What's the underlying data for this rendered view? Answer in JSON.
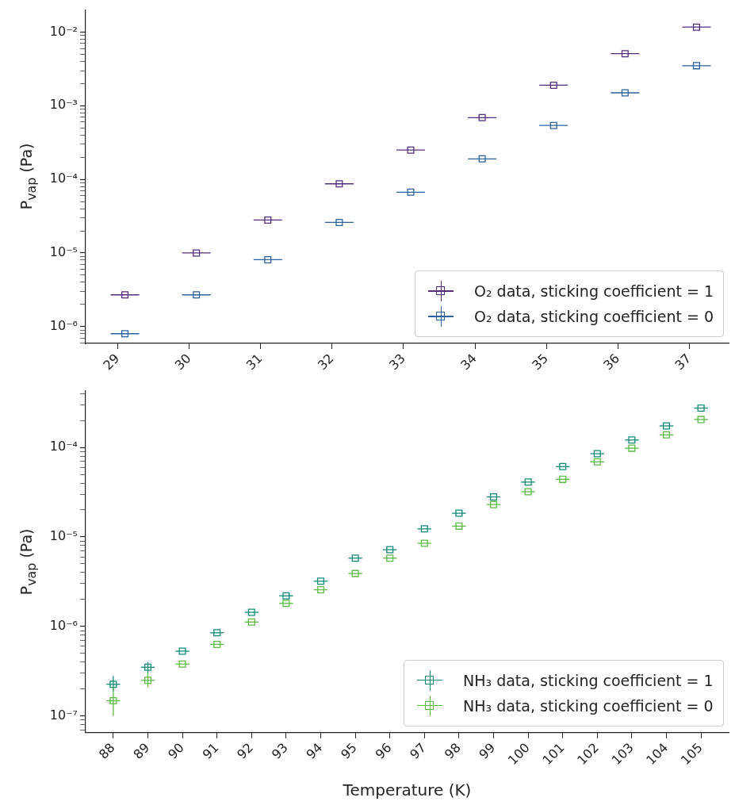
{
  "chart_data": [
    {
      "type": "scatter",
      "ylabel": "P$_{vap}$ (Pa)",
      "log": "y",
      "grid": false,
      "legend": "bottom right",
      "marker": "square",
      "x": [
        29.1,
        30.1,
        31.1,
        32.1,
        33.1,
        34.1,
        35.1,
        36.1,
        37.1
      ],
      "xlim": [
        28.55,
        37.55
      ],
      "xticks": [
        29,
        30,
        31,
        32,
        33,
        34,
        35,
        36,
        37
      ],
      "ylim": [
        5.9e-07,
        0.02
      ],
      "yticks": [
        {
          "value": 6e-07,
          "label": null
        },
        {
          "value": 7e-07,
          "label": null
        },
        {
          "value": 8e-07,
          "label": null
        },
        {
          "value": 9e-07,
          "label": null
        },
        {
          "value": 1e-06,
          "label": "10⁻⁶"
        },
        {
          "value": 2e-06,
          "label": null
        },
        {
          "value": 3e-06,
          "label": null
        },
        {
          "value": 4e-06,
          "label": null
        },
        {
          "value": 5e-06,
          "label": null
        },
        {
          "value": 6e-06,
          "label": null
        },
        {
          "value": 7e-06,
          "label": null
        },
        {
          "value": 8e-06,
          "label": null
        },
        {
          "value": 9e-06,
          "label": null
        },
        {
          "value": 1e-05,
          "label": "10⁻⁵"
        },
        {
          "value": 2e-05,
          "label": null
        },
        {
          "value": 3e-05,
          "label": null
        },
        {
          "value": 4e-05,
          "label": null
        },
        {
          "value": 5e-05,
          "label": null
        },
        {
          "value": 6e-05,
          "label": null
        },
        {
          "value": 7e-05,
          "label": null
        },
        {
          "value": 8e-05,
          "label": null
        },
        {
          "value": 9e-05,
          "label": null
        },
        {
          "value": 0.0001,
          "label": "10⁻⁴"
        },
        {
          "value": 0.0002,
          "label": null
        },
        {
          "value": 0.0003,
          "label": null
        },
        {
          "value": 0.0004,
          "label": null
        },
        {
          "value": 0.0005,
          "label": null
        },
        {
          "value": 0.0006,
          "label": null
        },
        {
          "value": 0.0007,
          "label": null
        },
        {
          "value": 0.0008,
          "label": null
        },
        {
          "value": 0.0009,
          "label": null
        },
        {
          "value": 0.001,
          "label": "10⁻³"
        },
        {
          "value": 0.002,
          "label": null
        },
        {
          "value": 0.003,
          "label": null
        },
        {
          "value": 0.004,
          "label": null
        },
        {
          "value": 0.005,
          "label": null
        },
        {
          "value": 0.006,
          "label": null
        },
        {
          "value": 0.007,
          "label": null
        },
        {
          "value": 0.008,
          "label": null
        },
        {
          "value": 0.009,
          "label": null
        },
        {
          "value": 0.01,
          "label": "10⁻²"
        }
      ],
      "series": [
        {
          "name": "O₂ data, sticking coefficient = 1",
          "color": "#562d7e",
          "values": [
            2.7e-06,
            1e-05,
            2.8e-05,
            8.7e-05,
            0.00025,
            0.00069,
            0.0019,
            0.0051,
            0.0117
          ],
          "xerrors": [
            0.2,
            0.2,
            0.2,
            0.2,
            0.2,
            0.2,
            0.2,
            0.2,
            0.2
          ]
        },
        {
          "name": "O₂ data, sticking coefficient = 0",
          "color": "#2c62a0",
          "values": [
            8e-07,
            2.7e-06,
            8.1e-06,
            2.6e-05,
            6.7e-05,
            0.00019,
            0.00054,
            0.0015,
            0.0035
          ],
          "xerrors": [
            0.2,
            0.2,
            0.2,
            0.2,
            0.2,
            0.2,
            0.2,
            0.2,
            0.2
          ]
        }
      ]
    },
    {
      "type": "scatter",
      "xlabel": "Temperature (K)",
      "ylabel": "P$_{vap}$ (Pa)",
      "log": "y",
      "grid": false,
      "legend": "bottom right",
      "marker": "square",
      "x": [
        88,
        89,
        90,
        91,
        92,
        93,
        94,
        95,
        96,
        97,
        98,
        99,
        100,
        101,
        102,
        103,
        104,
        105
      ],
      "xlim": [
        87.2,
        105.8
      ],
      "xticks": [
        88,
        89,
        90,
        91,
        92,
        93,
        94,
        95,
        96,
        97,
        98,
        99,
        100,
        101,
        102,
        103,
        104,
        105
      ],
      "ylim": [
        6.5e-08,
        0.00043
      ],
      "yticks": [
        {
          "value": 7e-08,
          "label": null
        },
        {
          "value": 8e-08,
          "label": null
        },
        {
          "value": 9e-08,
          "label": null
        },
        {
          "value": 1e-07,
          "label": "10⁻⁷"
        },
        {
          "value": 2e-07,
          "label": null
        },
        {
          "value": 3e-07,
          "label": null
        },
        {
          "value": 4e-07,
          "label": null
        },
        {
          "value": 5e-07,
          "label": null
        },
        {
          "value": 6e-07,
          "label": null
        },
        {
          "value": 7e-07,
          "label": null
        },
        {
          "value": 8e-07,
          "label": null
        },
        {
          "value": 9e-07,
          "label": null
        },
        {
          "value": 1e-06,
          "label": "10⁻⁶"
        },
        {
          "value": 2e-06,
          "label": null
        },
        {
          "value": 3e-06,
          "label": null
        },
        {
          "value": 4e-06,
          "label": null
        },
        {
          "value": 5e-06,
          "label": null
        },
        {
          "value": 6e-06,
          "label": null
        },
        {
          "value": 7e-06,
          "label": null
        },
        {
          "value": 8e-06,
          "label": null
        },
        {
          "value": 9e-06,
          "label": null
        },
        {
          "value": 1e-05,
          "label": "10⁻⁵"
        },
        {
          "value": 2e-05,
          "label": null
        },
        {
          "value": 3e-05,
          "label": null
        },
        {
          "value": 4e-05,
          "label": null
        },
        {
          "value": 5e-05,
          "label": null
        },
        {
          "value": 6e-05,
          "label": null
        },
        {
          "value": 7e-05,
          "label": null
        },
        {
          "value": 8e-05,
          "label": null
        },
        {
          "value": 9e-05,
          "label": null
        },
        {
          "value": 0.0001,
          "label": "10⁻⁴"
        },
        {
          "value": 0.0002,
          "label": null
        },
        {
          "value": 0.0003,
          "label": null
        },
        {
          "value": 0.0004,
          "label": null
        }
      ],
      "series": [
        {
          "name": "NH₃ data, sticking coefficient = 1",
          "color": "#118a7a",
          "values": [
            2.26e-07,
            3.5e-07,
            5.3e-07,
            8.5e-07,
            1.44e-06,
            2.2e-06,
            3.2e-06,
            5.8e-06,
            7.2e-06,
            1.23e-05,
            1.84e-05,
            2.8e-05,
            4.1e-05,
            6.1e-05,
            8.5e-05,
            0.000121,
            0.000174,
            0.000275
          ],
          "xerrors": [
            0.2,
            0.2,
            0.2,
            0.2,
            0.2,
            0.2,
            0.2,
            0.2,
            0.2,
            0.2,
            0.2,
            0.2,
            0.2,
            0.2,
            0.2,
            0.2,
            0.2,
            0.2
          ],
          "errors": [
            [
              1.9e-07,
              2.8e-07
            ],
            [
              3e-07,
              4e-07
            ],
            null,
            null,
            null,
            null,
            null,
            null,
            null,
            null,
            null,
            null,
            null,
            null,
            null,
            null,
            null,
            null
          ]
        },
        {
          "name": "NH₃ data, sticking coefficient = 0",
          "color": "#5dbb46",
          "values": [
            1.48e-07,
            2.5e-07,
            3.8e-07,
            6.3e-07,
            1.12e-06,
            1.81e-06,
            2.57e-06,
            3.9e-06,
            5.8e-06,
            8.5e-06,
            1.32e-05,
            2.3e-05,
            3.2e-05,
            4.4e-05,
            6.9e-05,
            9.8e-05,
            0.000138,
            0.000205
          ],
          "xerrors": [
            0.2,
            0.2,
            0.2,
            0.2,
            0.2,
            0.2,
            0.2,
            0.2,
            0.2,
            0.2,
            0.2,
            0.2,
            0.2,
            0.2,
            0.2,
            0.2,
            0.2,
            0.2
          ],
          "errors": [
            [
              1e-07,
              2.1e-07
            ],
            [
              2.1e-07,
              3e-07
            ],
            null,
            null,
            null,
            null,
            null,
            null,
            null,
            null,
            null,
            null,
            null,
            null,
            null,
            null,
            null,
            null
          ]
        }
      ]
    }
  ]
}
